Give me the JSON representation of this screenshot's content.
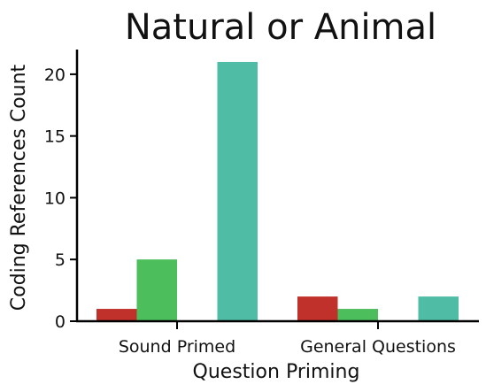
{
  "chart_data": {
    "type": "bar",
    "title": "Natural or Animal",
    "xlabel": "Question Priming",
    "ylabel": "Coding References Count",
    "categories": [
      "Sound Primed",
      "General Questions"
    ],
    "series": [
      {
        "values": [
          1,
          2
        ],
        "color": "#c0312b"
      },
      {
        "values": [
          5,
          1
        ],
        "color": "#4cbe5c"
      },
      {
        "values": [
          0,
          0
        ],
        "color": "#3f8fd0"
      },
      {
        "values": [
          21,
          2
        ],
        "color": "#4fbca5"
      }
    ],
    "ylim": [
      0,
      22
    ],
    "yticks": [
      0,
      5,
      10,
      15,
      20
    ],
    "grid": false,
    "legend": "none"
  }
}
